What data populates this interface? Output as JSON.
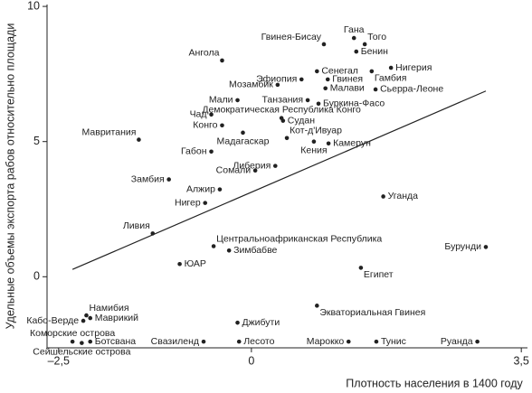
{
  "chart_data": {
    "type": "scatter",
    "x_label": "Плотность населения в 1400 году",
    "y_label": "Удельные объемы экспорта рабов относительно площади",
    "xlim": [
      -2.65,
      3.58
    ],
    "ylim": [
      -2.63,
      10.07
    ],
    "xticks": [
      {
        "value": -2.5,
        "label": "–2,5"
      },
      0,
      {
        "value": 3.5,
        "label": "3,5"
      }
    ],
    "yticks": [
      0,
      5,
      10
    ],
    "color": "#222222",
    "line_color": "#222222",
    "points": {
      "labels": [
        "Гана",
        "Того",
        "Гвинея-Бисау",
        "Бенин",
        "Ангола",
        "Сенегал",
        "Нигерия",
        "Гамбия",
        "Эфиопия",
        "Гвинея",
        "Малави",
        "Сьерра-Леоне",
        "Мозамбик",
        "Мали",
        "Танзания",
        "Буркина-Фасо",
        "Демократическая Республика Конго",
        "Судан",
        "Чад",
        "Конго",
        "Мадагаскар",
        "Мавритания",
        "Кот-д'Ивуар",
        "Кения",
        "Камерун",
        "Габон",
        "Либерия",
        "Сомали",
        "Замбия",
        "Алжир",
        "Уганда",
        "Нигер",
        "Ливия",
        "Центральноафриканская Республика",
        "Бурунди",
        "Зимбабве",
        "ЮАР",
        "Египет",
        "Экваториальная Гвинея",
        "Намибия",
        "Кабо-Верде",
        "Маврикий",
        "Джибути",
        "Коморские острова",
        "Ботсвана",
        "Сейшельские острова",
        "Свазиленд",
        "Лесото",
        "Марокко",
        "Тунис",
        "Руанда"
      ],
      "x": [
        1.33,
        1.47,
        0.94,
        1.36,
        -0.38,
        0.85,
        1.81,
        1.56,
        0.65,
        0.99,
        0.96,
        1.61,
        0.34,
        -0.18,
        0.73,
        0.87,
        0.39,
        0.41,
        -0.52,
        -0.38,
        -0.11,
        -1.46,
        0.46,
        0.81,
        1.0,
        -0.52,
        0.31,
        0.05,
        -1.07,
        -0.41,
        1.71,
        -0.6,
        -1.28,
        -0.49,
        3.04,
        -0.29,
        -0.93,
        1.42,
        0.85,
        -2.14,
        -2.18,
        -2.09,
        -0.18,
        -2.32,
        -2.09,
        -2.2,
        -0.62,
        -0.16,
        1.26,
        1.62,
        2.93
      ],
      "y": [
        8.83,
        8.6,
        8.6,
        8.33,
        8.0,
        7.6,
        7.73,
        7.6,
        7.3,
        7.3,
        6.97,
        6.93,
        7.1,
        6.53,
        6.53,
        6.4,
        5.87,
        5.77,
        6.0,
        5.6,
        5.33,
        5.07,
        5.13,
        5.0,
        4.93,
        4.63,
        4.1,
        3.93,
        3.6,
        3.23,
        2.97,
        2.73,
        1.6,
        1.13,
        1.1,
        0.97,
        0.47,
        0.33,
        -1.07,
        -1.43,
        -1.63,
        -1.53,
        -1.7,
        -2.4,
        -2.4,
        -2.45,
        -2.4,
        -2.4,
        -2.4,
        -2.4,
        -2.4
      ]
    },
    "trend_line": {
      "x": [
        -2.32,
        3.04
      ],
      "y": [
        0.27,
        6.87
      ]
    }
  }
}
